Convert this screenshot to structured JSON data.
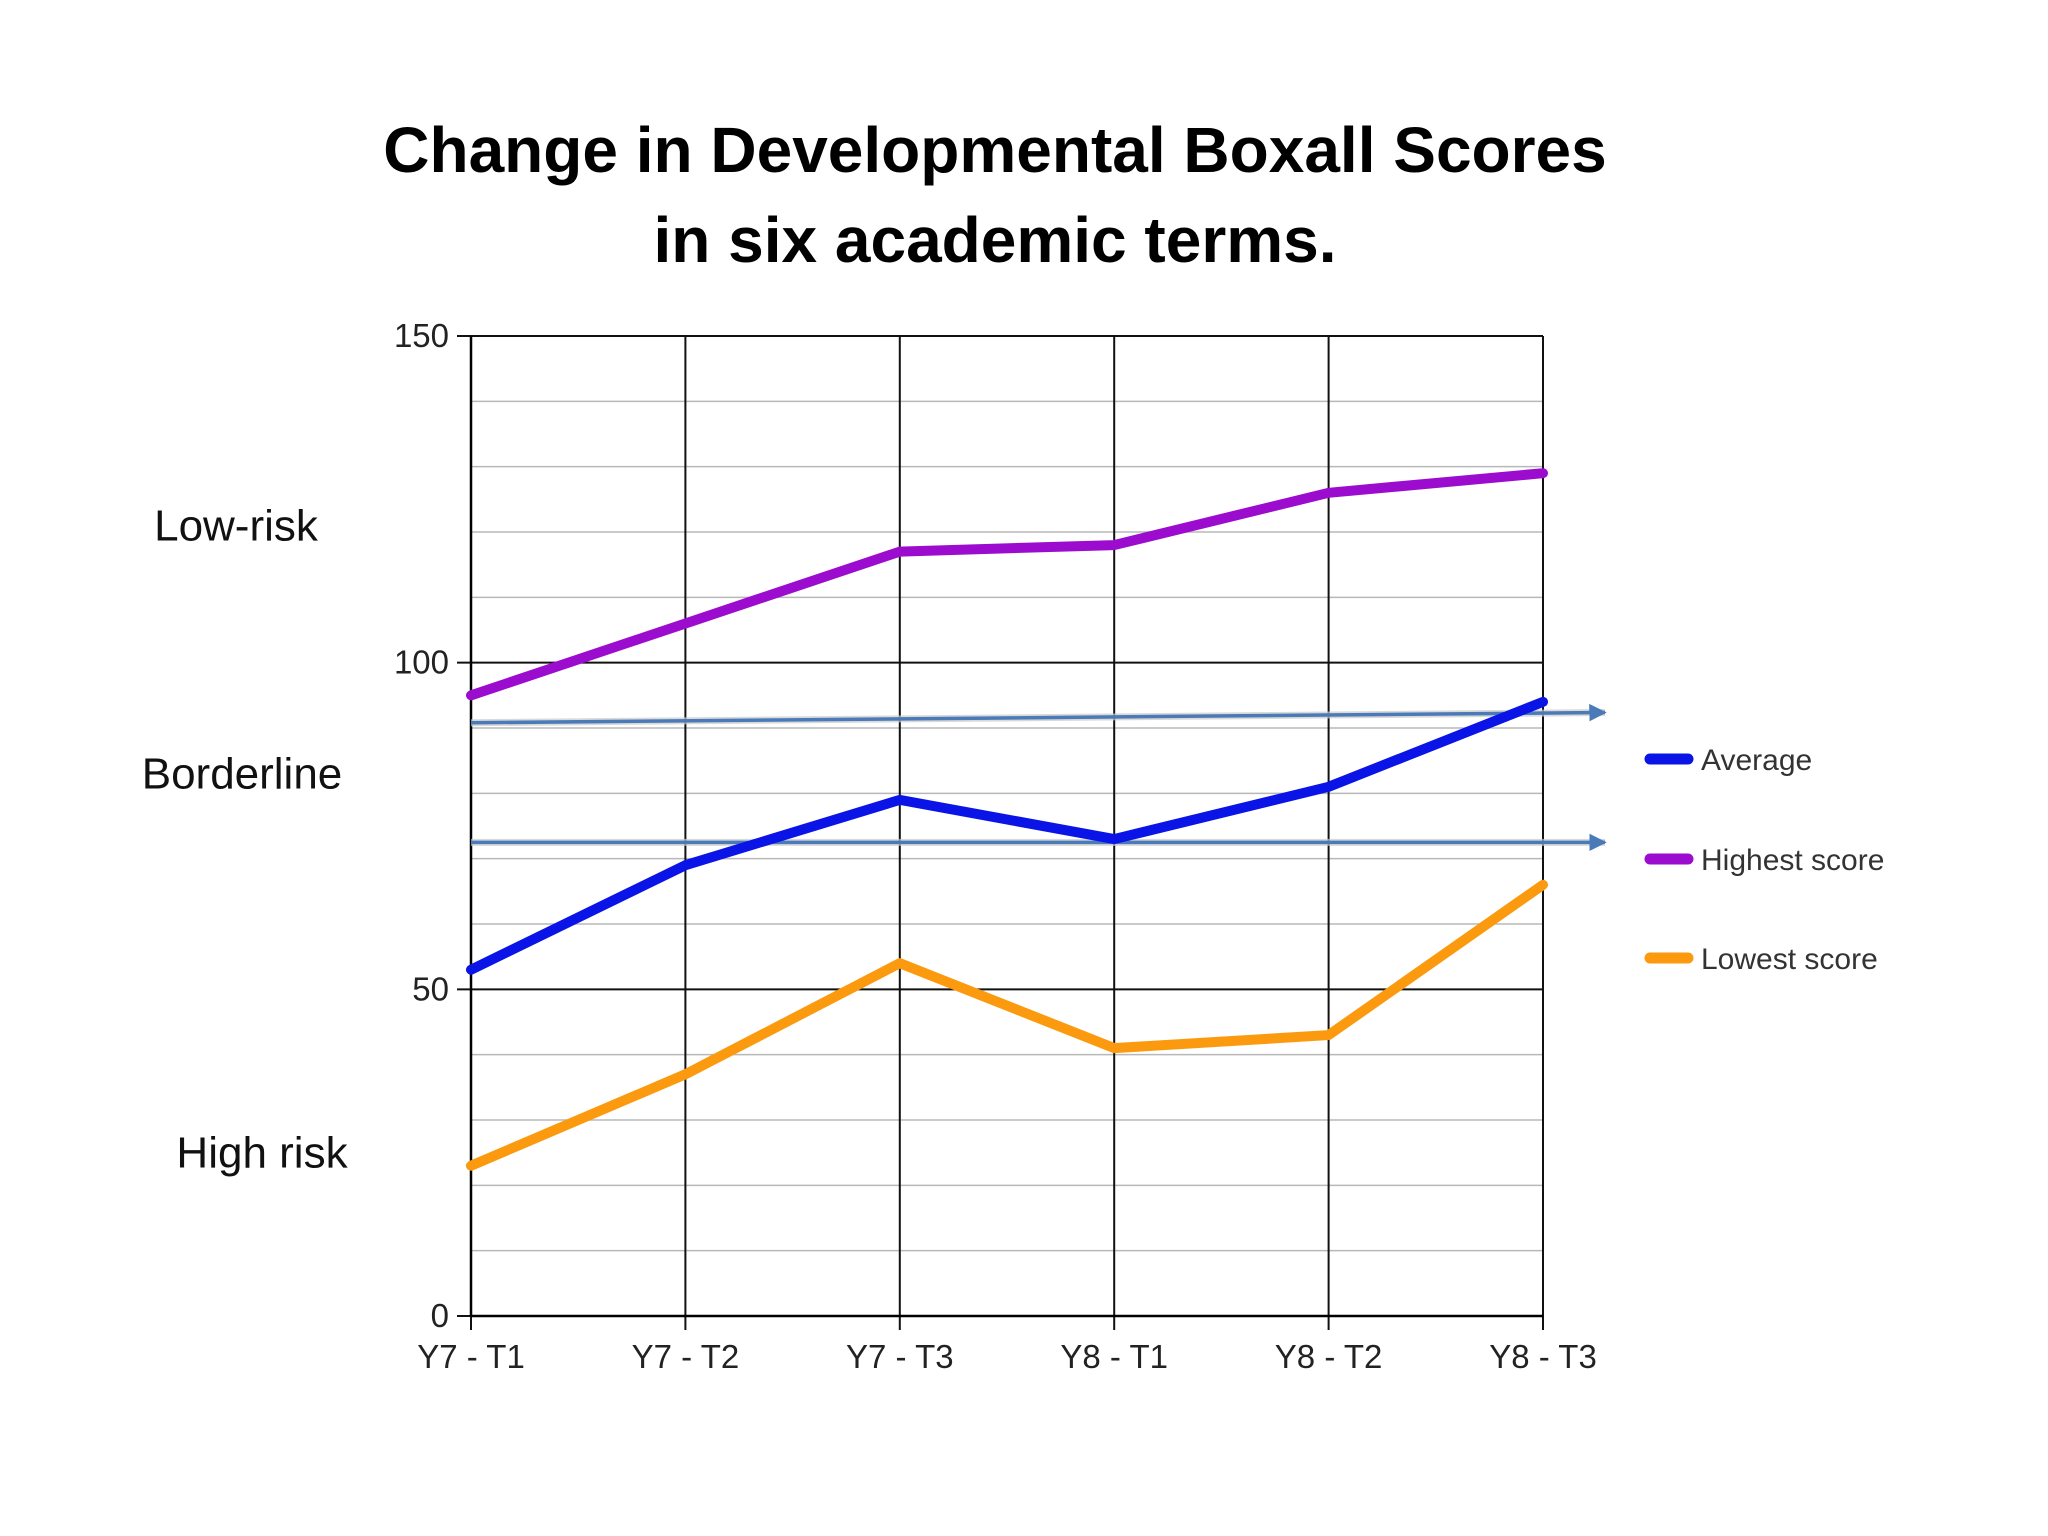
{
  "chart_data": {
    "type": "line",
    "title_line1": "Change in Developmental Boxall Scores",
    "title_line2": "in six academic terms.",
    "categories": [
      "Y7 - T1",
      "Y7 - T2",
      "Y7 - T3",
      "Y8 - T1",
      "Y8 - T2",
      "Y8 - T3"
    ],
    "ylim": [
      0,
      150
    ],
    "yticks": [
      "0",
      "50",
      "100",
      "150"
    ],
    "grid": true,
    "legend_position": "right",
    "series": [
      {
        "name": "Average",
        "color": "#0a14e6",
        "values": [
          53,
          69,
          79,
          73,
          81,
          94
        ]
      },
      {
        "name": "Highest score",
        "color": "#9b0ccf",
        "values": [
          95,
          106,
          117,
          118,
          126,
          129
        ]
      },
      {
        "name": "Lowest score",
        "color": "#fb9a0e",
        "values": [
          23,
          37,
          54,
          41,
          43,
          66
        ]
      }
    ],
    "threshold_lines": [
      {
        "values": [
          90.8,
          91.1,
          91.4,
          91.7,
          92.0,
          92.3
        ],
        "color": "#4a7ab8"
      },
      {
        "values": [
          72.5,
          72.5,
          72.5,
          72.5,
          72.5,
          72.5
        ],
        "color": "#4a7ab8"
      }
    ],
    "risk_labels": [
      {
        "text": "Low-risk",
        "value": 121
      },
      {
        "text": "Borderline",
        "value": 83
      },
      {
        "text": "High risk",
        "value": 25
      }
    ]
  }
}
